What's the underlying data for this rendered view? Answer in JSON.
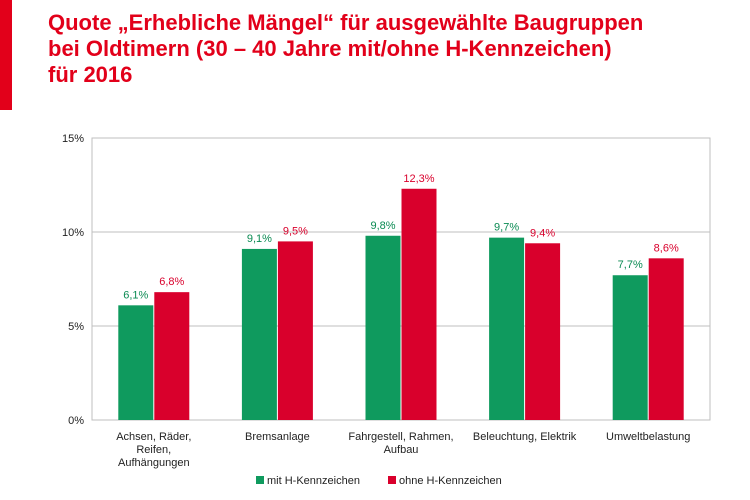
{
  "header": {
    "title_lines": [
      "Quote „Erhebliche Mängel“ für ausgewählte Baugruppen",
      "bei Oldtimern (30 – 40 Jahre mit/ohne H-Kennzeichen)",
      "für 2016"
    ]
  },
  "colors": {
    "accent": "#e2001a",
    "series_mit": "#0f9a5e",
    "series_ohne": "#d9002c",
    "label_mit": "#0a8a52",
    "label_ohne": "#d9002c"
  },
  "chart_data": {
    "type": "bar",
    "title": "Quote „Erhebliche Mängel“ für ausgewählte Baugruppen bei Oldtimern (30 – 40 Jahre mit/ohne H-Kennzeichen) für 2016",
    "categories": [
      [
        "Achsen, Räder,",
        "Reifen,",
        "Aufhängungen"
      ],
      [
        "Bremsanlage"
      ],
      [
        "Fahrgestell, Rahmen,",
        "Aufbau"
      ],
      [
        "Beleuchtung, Elektrik"
      ],
      [
        "Umweltbelastung"
      ]
    ],
    "series": [
      {
        "name": "mit H-Kennzeichen",
        "values": [
          6.1,
          9.1,
          9.8,
          9.7,
          7.7
        ],
        "labels": [
          "6,1%",
          "9,1%",
          "9,8%",
          "9,7%",
          "7,7%"
        ]
      },
      {
        "name": "ohne H-Kennzeichen",
        "values": [
          6.8,
          9.5,
          12.3,
          9.4,
          8.6
        ],
        "labels": [
          "6,8%",
          "9,5%",
          "12,3%",
          "9,4%",
          "8,6%"
        ]
      }
    ],
    "ylim": [
      0,
      15
    ],
    "yticks": [
      0,
      5,
      10,
      15
    ],
    "ytick_labels": [
      "0%",
      "5%",
      "10%",
      "15%"
    ],
    "grid": true,
    "legend_position": "bottom"
  }
}
